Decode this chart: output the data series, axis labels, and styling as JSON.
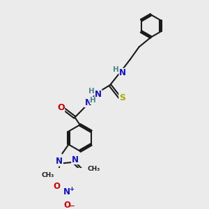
{
  "bg_color": "#ebebeb",
  "bond_color": "#1a1a1a",
  "bond_width": 1.5,
  "atom_colors": {
    "C": "#1a1a1a",
    "H": "#4a8888",
    "N": "#1010cc",
    "O": "#cc0000",
    "S": "#aaaa00"
  },
  "font_size": 8.0
}
